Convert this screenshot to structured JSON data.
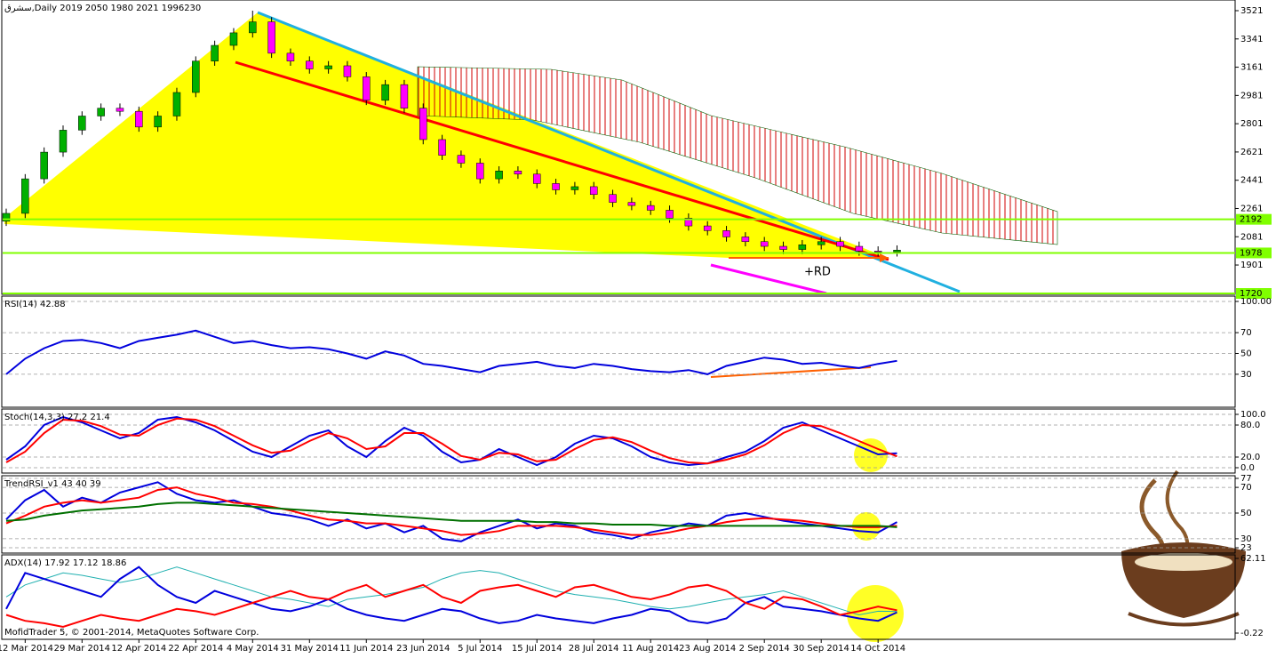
{
  "chart_data": [
    {
      "type": "candlestick",
      "title": "سشرق,Daily  2019 2050 1980 2021  1996230",
      "categories": [
        null,
        "12 Mar 2014",
        null,
        null,
        "29 Mar 2014",
        null,
        null,
        "12 Apr 2014",
        null,
        null,
        "22 Apr 2014",
        null,
        null,
        "4 May 2014",
        null,
        null,
        "31 May 2014",
        null,
        null,
        "11 Jun 2014",
        null,
        null,
        "23 Jun 2014",
        null,
        null,
        "5 Jul 2014",
        null,
        null,
        "15 Jul 2014",
        null,
        null,
        "28 Jul 2014",
        null,
        null,
        "11 Aug 2014",
        null,
        null,
        "23 Aug 2014",
        null,
        null,
        "2 Sep 2014",
        null,
        null,
        "30 Sep 2014",
        null,
        null,
        "14 Oct 2014",
        null
      ],
      "open": [
        2180,
        2230,
        2450,
        2620,
        2760,
        2850,
        2900,
        2880,
        2780,
        2850,
        3000,
        3200,
        3300,
        3380,
        3450,
        3250,
        3200,
        3150,
        3170,
        3100,
        2950,
        3050,
        2900,
        2700,
        2600,
        2550,
        2450,
        2500,
        2480,
        2420,
        2380,
        2400,
        2350,
        2300,
        2280,
        2250,
        2200,
        2150,
        2120,
        2080,
        2050,
        2020,
        2000,
        2030,
        2050,
        2020,
        1990,
        1985
      ],
      "high": [
        2260,
        2480,
        2650,
        2790,
        2880,
        2930,
        2930,
        2910,
        2880,
        3030,
        3230,
        3330,
        3410,
        3521,
        3480,
        3280,
        3230,
        3200,
        3200,
        3130,
        3080,
        3080,
        2930,
        2730,
        2630,
        2580,
        2530,
        2530,
        2510,
        2450,
        2430,
        2430,
        2380,
        2330,
        2310,
        2280,
        2230,
        2180,
        2150,
        2110,
        2080,
        2050,
        2060,
        2080,
        2080,
        2050,
        2020,
        2026
      ],
      "low": [
        2150,
        2200,
        2420,
        2590,
        2730,
        2820,
        2850,
        2750,
        2750,
        2820,
        2970,
        3170,
        3270,
        3350,
        3220,
        3170,
        3120,
        3120,
        3070,
        2920,
        2920,
        2870,
        2670,
        2570,
        2520,
        2420,
        2420,
        2450,
        2390,
        2350,
        2350,
        2320,
        2270,
        2250,
        2220,
        2170,
        2120,
        2090,
        2050,
        2020,
        1990,
        1970,
        1970,
        2000,
        1990,
        1960,
        1955,
        1955
      ],
      "close": [
        2230,
        2450,
        2620,
        2760,
        2850,
        2900,
        2880,
        2780,
        2850,
        3000,
        3200,
        3300,
        3380,
        3450,
        3250,
        3200,
        3150,
        3170,
        3100,
        2950,
        3050,
        2900,
        2700,
        2600,
        2550,
        2450,
        2500,
        2480,
        2420,
        2380,
        2400,
        2350,
        2300,
        2280,
        2250,
        2200,
        2150,
        2120,
        2080,
        2050,
        2020,
        2000,
        2030,
        2050,
        2020,
        1990,
        1985,
        1996
      ],
      "up_color": "#00b000",
      "down_color": "#ff00ff",
      "ylim": [
        1720,
        3572
      ],
      "yticks": [
        1901,
        2081,
        2261,
        2441,
        2621,
        2801,
        2981,
        3161,
        3341,
        3521
      ],
      "hlines": [
        2192,
        1978,
        1720
      ],
      "hline_color": "#80ff00",
      "annotation": "+RD"
    },
    {
      "type": "line",
      "title": "RSI(14) 42.88",
      "ylim": [
        0,
        100
      ],
      "yticks": [
        30,
        50,
        70,
        {
          "value": 100,
          "label": "100.00"
        }
      ],
      "grid": true,
      "series": [
        {
          "color": "#0000dd",
          "values": [
            30,
            45,
            55,
            62,
            63,
            60,
            55,
            62,
            65,
            68,
            72,
            66,
            60,
            62,
            58,
            55,
            56,
            54,
            50,
            45,
            52,
            48,
            40,
            38,
            35,
            32,
            38,
            40,
            42,
            38,
            36,
            40,
            38,
            35,
            33,
            32,
            34,
            30,
            38,
            42,
            46,
            44,
            40,
            41,
            38,
            36,
            40,
            42.88
          ]
        }
      ]
    },
    {
      "type": "line",
      "title": "Stoch(14,3,3) 27.2 21.4",
      "ylim": [
        0,
        100
      ],
      "yticks": [
        {
          "value": 0,
          "label": "0.0"
        },
        {
          "value": 20,
          "label": "20.0"
        },
        {
          "value": 80,
          "label": "80.0"
        },
        {
          "value": 100,
          "label": "100.0"
        }
      ],
      "grid": true,
      "series": [
        {
          "color": "#0000dd",
          "values": [
            15,
            40,
            80,
            95,
            85,
            70,
            55,
            65,
            90,
            95,
            85,
            70,
            50,
            30,
            20,
            40,
            60,
            70,
            40,
            20,
            50,
            75,
            60,
            30,
            10,
            15,
            35,
            20,
            5,
            20,
            45,
            60,
            55,
            40,
            20,
            10,
            5,
            8,
            20,
            30,
            50,
            75,
            85,
            70,
            55,
            40,
            25,
            27.2
          ]
        },
        {
          "color": "#ff0000",
          "values": [
            10,
            30,
            65,
            90,
            88,
            78,
            62,
            60,
            80,
            92,
            90,
            78,
            60,
            42,
            28,
            32,
            50,
            65,
            55,
            35,
            40,
            65,
            65,
            45,
            22,
            15,
            28,
            25,
            12,
            15,
            35,
            52,
            57,
            48,
            32,
            18,
            10,
            8,
            15,
            25,
            42,
            65,
            80,
            78,
            65,
            50,
            35,
            21.4
          ]
        }
      ]
    },
    {
      "type": "line",
      "title": "TrendRSI_v1 43 40 39",
      "ylim": [
        23,
        77
      ],
      "yticks": [
        23,
        30,
        50,
        70,
        77
      ],
      "grid": true,
      "series": [
        {
          "color": "#0000dd",
          "values": [
            45,
            60,
            68,
            55,
            62,
            58,
            66,
            70,
            74,
            65,
            60,
            58,
            60,
            55,
            50,
            48,
            45,
            40,
            45,
            38,
            42,
            35,
            40,
            30,
            28,
            35,
            40,
            45,
            38,
            42,
            40,
            35,
            33,
            30,
            35,
            38,
            42,
            40,
            48,
            50,
            47,
            44,
            42,
            40,
            38,
            36,
            35,
            43
          ]
        },
        {
          "color": "#ff0000",
          "values": [
            42,
            48,
            55,
            58,
            60,
            58,
            60,
            62,
            68,
            70,
            65,
            62,
            58,
            57,
            55,
            52,
            48,
            45,
            44,
            42,
            42,
            40,
            38,
            36,
            33,
            34,
            36,
            40,
            40,
            40,
            39,
            37,
            35,
            33,
            33,
            35,
            38,
            40,
            43,
            45,
            46,
            45,
            44,
            42,
            40,
            39,
            39,
            40
          ]
        },
        {
          "color": "#007000",
          "values": [
            44,
            45,
            48,
            50,
            52,
            53,
            54,
            55,
            57,
            58,
            58,
            57,
            56,
            55,
            54,
            53,
            52,
            51,
            50,
            49,
            48,
            47,
            46,
            45,
            44,
            44,
            44,
            44,
            43,
            43,
            42,
            42,
            41,
            41,
            41,
            40,
            40,
            40,
            40,
            40,
            40,
            40,
            40,
            40,
            40,
            40,
            40,
            39
          ]
        }
      ]
    },
    {
      "type": "line",
      "title": "ADX(14) 17.92 17.12 18.86",
      "ylim": [
        -0.22,
        62.11
      ],
      "yticks": [
        -0.22,
        62.11
      ],
      "grid": false,
      "series": [
        {
          "color": "#20b0b0",
          "values": [
            30,
            40,
            45,
            50,
            48,
            45,
            42,
            45,
            50,
            55,
            50,
            45,
            40,
            35,
            30,
            28,
            25,
            22,
            28,
            30,
            32,
            35,
            38,
            45,
            50,
            52,
            50,
            45,
            40,
            35,
            32,
            30,
            28,
            25,
            22,
            20,
            22,
            25,
            28,
            30,
            32,
            35,
            30,
            25,
            20,
            15,
            18,
            17.92
          ]
        },
        {
          "color": "#0000dd",
          "values": [
            20,
            50,
            45,
            40,
            35,
            30,
            45,
            55,
            40,
            30,
            25,
            35,
            30,
            25,
            20,
            18,
            22,
            28,
            20,
            15,
            12,
            10,
            15,
            20,
            18,
            12,
            8,
            10,
            15,
            12,
            10,
            8,
            12,
            15,
            20,
            18,
            10,
            8,
            12,
            25,
            30,
            22,
            20,
            18,
            15,
            12,
            10,
            17.12
          ]
        },
        {
          "color": "#ff0000",
          "values": [
            15,
            10,
            8,
            5,
            10,
            15,
            12,
            10,
            15,
            20,
            18,
            15,
            20,
            25,
            30,
            35,
            30,
            28,
            35,
            40,
            30,
            35,
            40,
            30,
            25,
            35,
            38,
            40,
            35,
            30,
            38,
            40,
            35,
            30,
            28,
            32,
            38,
            40,
            35,
            25,
            20,
            30,
            28,
            22,
            15,
            18,
            22,
            18.86
          ]
        }
      ]
    }
  ],
  "footer": "MofidTrader 5, © 2001-2014, MetaQuotes Software Corp."
}
